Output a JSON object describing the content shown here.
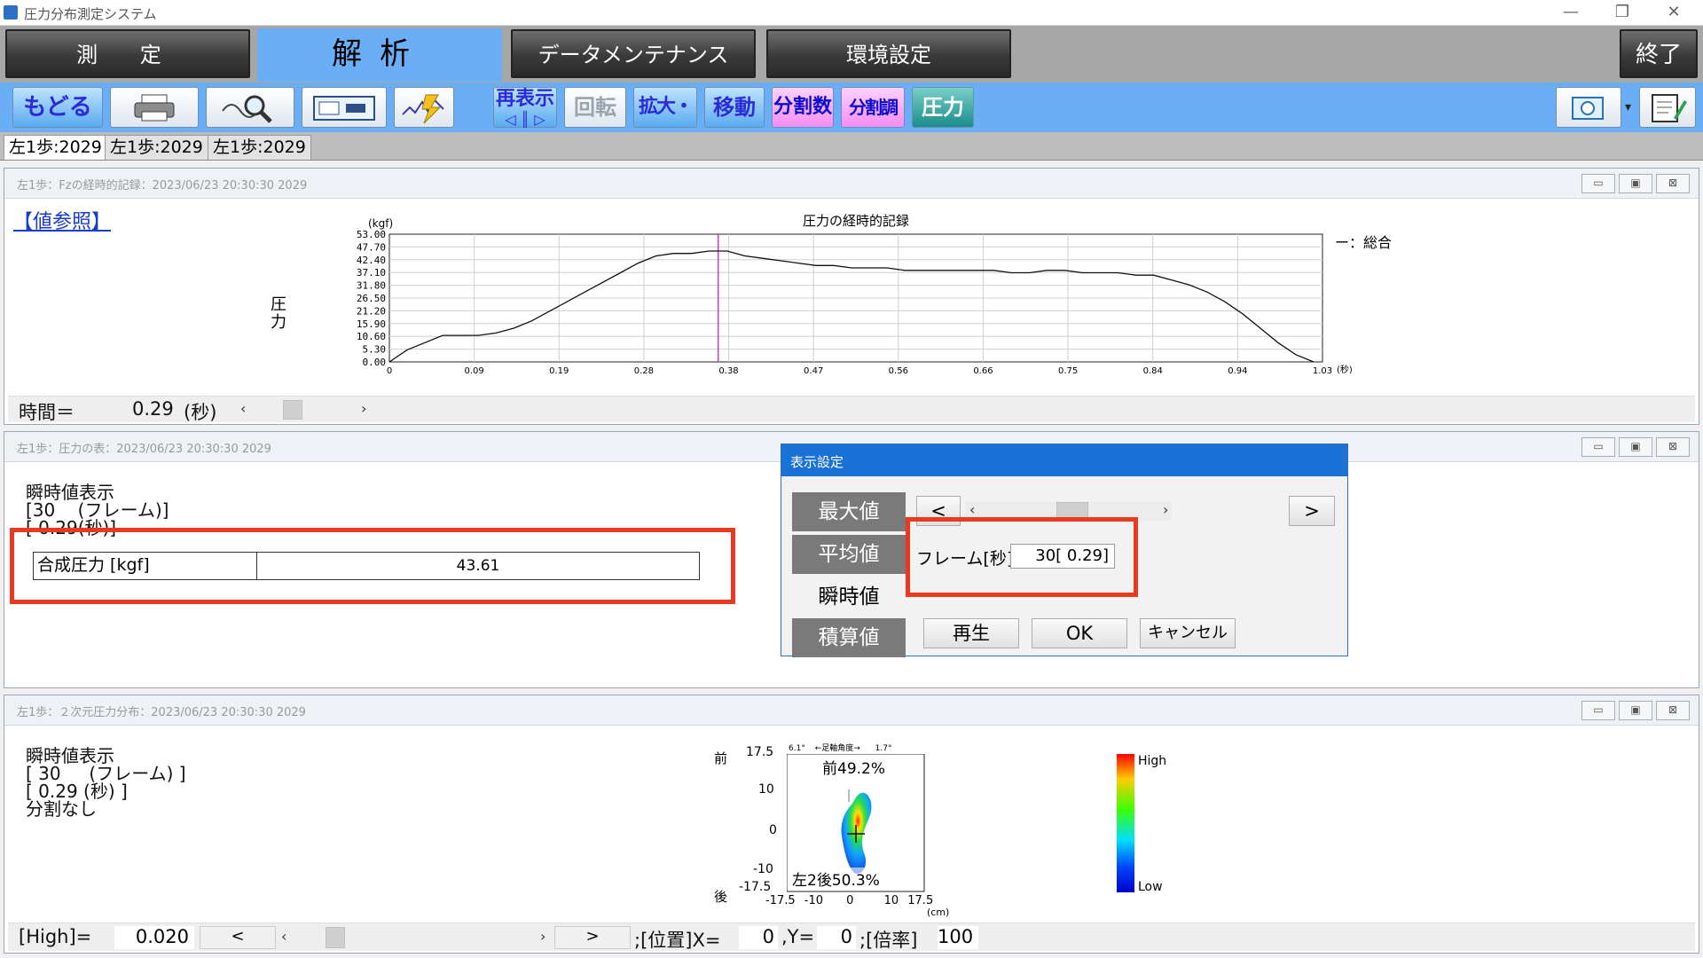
{
  "window": {
    "title": "圧力分布測定システム",
    "minimize": "—",
    "restore": "❐",
    "close": "✕"
  },
  "main_tabs": [
    {
      "label": "測 定"
    },
    {
      "label": "解析"
    },
    {
      "label": "データメンテナンス"
    },
    {
      "label": "環境設定"
    }
  ],
  "exit_label": "終了",
  "toolbar": {
    "back": "もどる",
    "print_icon": "printer-icon",
    "zoom_icon": "magnifier-icon",
    "view_icon": "foot-view-icon",
    "graph_icon": "waveform-icon",
    "redisplay": "再表示",
    "rotate": "回転",
    "zoom": "拡大・縮小",
    "move": "移動",
    "divisions": "分割数",
    "div_adjust": "分割調整",
    "pressure": "圧力",
    "camera_icon": "camera-icon",
    "dropdown_icon": "▾",
    "note_icon": "notepad-icon"
  },
  "sub_tabs": [
    "左1歩:2029",
    "左1歩:2029",
    "左1歩:2029"
  ],
  "panel1": {
    "title": "左1歩：Fzの経時的記録：2023/06/23 20:30:30 2029",
    "ref_link": "【値参照】",
    "ylabel": "圧力",
    "yunit": "(kgf)",
    "legend": "ー：総合",
    "time_label": "時間＝",
    "time_value": "0.29",
    "time_unit": "(秒)",
    "xunit": "(秒)"
  },
  "chart_data": {
    "type": "line",
    "title": "圧力の経時的記録",
    "xlabel": "(秒)",
    "ylabel": "圧力 (kgf)",
    "ylim": [
      0,
      53
    ],
    "xlim": [
      0,
      1.05
    ],
    "yticks": [
      "53.00",
      "47.70",
      "42.40",
      "37.10",
      "31.80",
      "26.50",
      "21.20",
      "15.90",
      "10.60",
      "5.30",
      "0.00"
    ],
    "xticks": [
      "0",
      "0.09",
      "0.19",
      "0.28",
      "0.38",
      "0.47",
      "0.56",
      "0.66",
      "0.75",
      "0.84",
      "0.94",
      "1.03"
    ],
    "cursor_x": 0.37,
    "grid": true,
    "legend": "top-right",
    "series": [
      {
        "name": "総合",
        "x": [
          0,
          0.02,
          0.04,
          0.06,
          0.08,
          0.1,
          0.12,
          0.14,
          0.16,
          0.18,
          0.2,
          0.22,
          0.24,
          0.26,
          0.28,
          0.3,
          0.32,
          0.34,
          0.36,
          0.38,
          0.4,
          0.42,
          0.44,
          0.46,
          0.48,
          0.5,
          0.52,
          0.54,
          0.56,
          0.58,
          0.6,
          0.62,
          0.64,
          0.66,
          0.68,
          0.7,
          0.72,
          0.74,
          0.76,
          0.78,
          0.8,
          0.82,
          0.84,
          0.86,
          0.88,
          0.9,
          0.92,
          0.94,
          0.96,
          0.98,
          1.0,
          1.02,
          1.04
        ],
        "y": [
          0,
          5,
          8,
          11,
          11,
          11,
          12,
          14,
          17,
          21,
          25,
          29,
          33,
          37,
          41,
          44,
          45,
          45,
          46,
          46,
          44,
          43,
          42,
          41,
          40,
          40,
          39,
          39,
          39,
          38,
          38,
          38,
          38,
          38,
          38,
          37,
          37,
          38,
          38,
          37,
          37,
          37,
          36,
          36,
          34,
          32,
          29,
          25,
          20,
          14,
          8,
          3,
          0
        ]
      }
    ]
  },
  "panel2": {
    "title": "左1歩：圧力の表：2023/06/23 20:30:30 2029",
    "line1": "瞬時値表示",
    "line2": "[30    (フレーム)]",
    "line3": "[ 0.29(秒)]",
    "table_label": "合成圧力 [kgf]",
    "table_value": "43.61"
  },
  "dialog": {
    "title": "表示設定",
    "max": "最大値",
    "avg": "平均値",
    "inst": "瞬時値",
    "sum": "積算値",
    "prev": "<",
    "next": ">",
    "frame_label": "フレーム[秒]",
    "frame_value": "30[ 0.29]",
    "play": "再生",
    "ok": "OK",
    "cancel": "キャンセル"
  },
  "panel3": {
    "title": "左1歩：２次元圧力分布：2023/06/23 20:30:30 2029",
    "line1": "瞬時値表示",
    "line2": "[ 30     (フレーム) ]",
    "line3": "[ 0.29 (秒) ]",
    "line4": "分割なし",
    "front": "前",
    "back": "後",
    "front_pct": "前49.2%",
    "back_pct": "左2後50.3%",
    "yticks": [
      "17.5",
      "10",
      "0",
      "-10",
      "-17.5"
    ],
    "xticks": [
      "-17.5",
      "-10",
      "0",
      "10",
      "17.5"
    ],
    "xunit": "(cm)",
    "topleft": "6.1°",
    "topmid": "←足軸角度→",
    "topright": "1.7°",
    "high": "High",
    "low": "Low",
    "high_label": "[High]=",
    "high_value": "0.020",
    "pos_label": ";[位置]X=",
    "pos_x": "0",
    "y_label": ",Y=",
    "pos_y": "0",
    "mag_label": ";[倍率]",
    "mag_value": "100"
  }
}
